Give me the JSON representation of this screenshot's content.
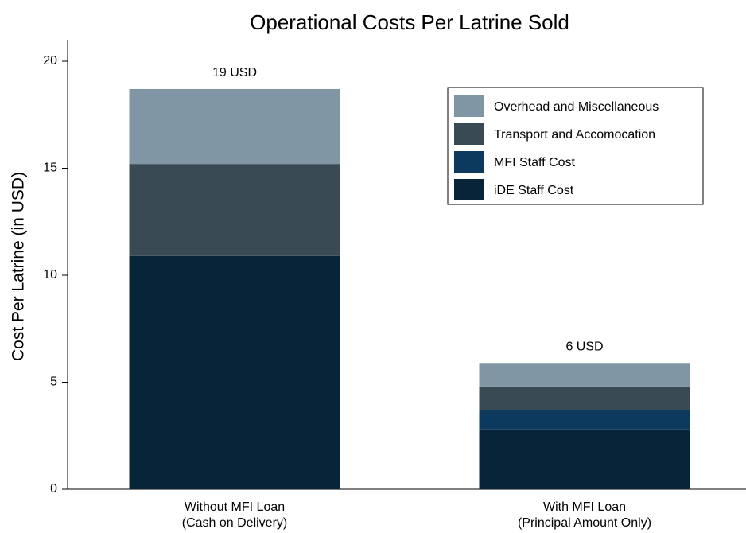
{
  "chart_data": {
    "type": "stacked_bar",
    "title": "Operational Costs Per Latrine Sold",
    "y_label": "Cost Per Latrine (in USD)",
    "categories": [
      [
        "Without MFI Loan",
        "(Cash on Delivery)"
      ],
      [
        "With MFI Loan",
        "(Principal Amount Only)"
      ]
    ],
    "series": [
      {
        "name": "iDE Staff Cost",
        "color": "#072438",
        "values": [
          10.9,
          2.8
        ]
      },
      {
        "name": "MFI Staff Cost",
        "color": "#0b3a5e",
        "values": [
          0,
          0.9
        ]
      },
      {
        "name": "Transport and Accomocation",
        "color": "#3a4a55",
        "values": [
          4.3,
          1.1
        ]
      },
      {
        "name": "Overhead and Miscellaneous",
        "color": "#8096a4",
        "values": [
          3.5,
          1.1
        ]
      }
    ],
    "total_labels": [
      "19 USD",
      "6 USD"
    ],
    "ylim": [
      0,
      20
    ],
    "yticks": [
      0,
      5,
      10,
      15,
      20
    ],
    "legend": "upper right"
  }
}
